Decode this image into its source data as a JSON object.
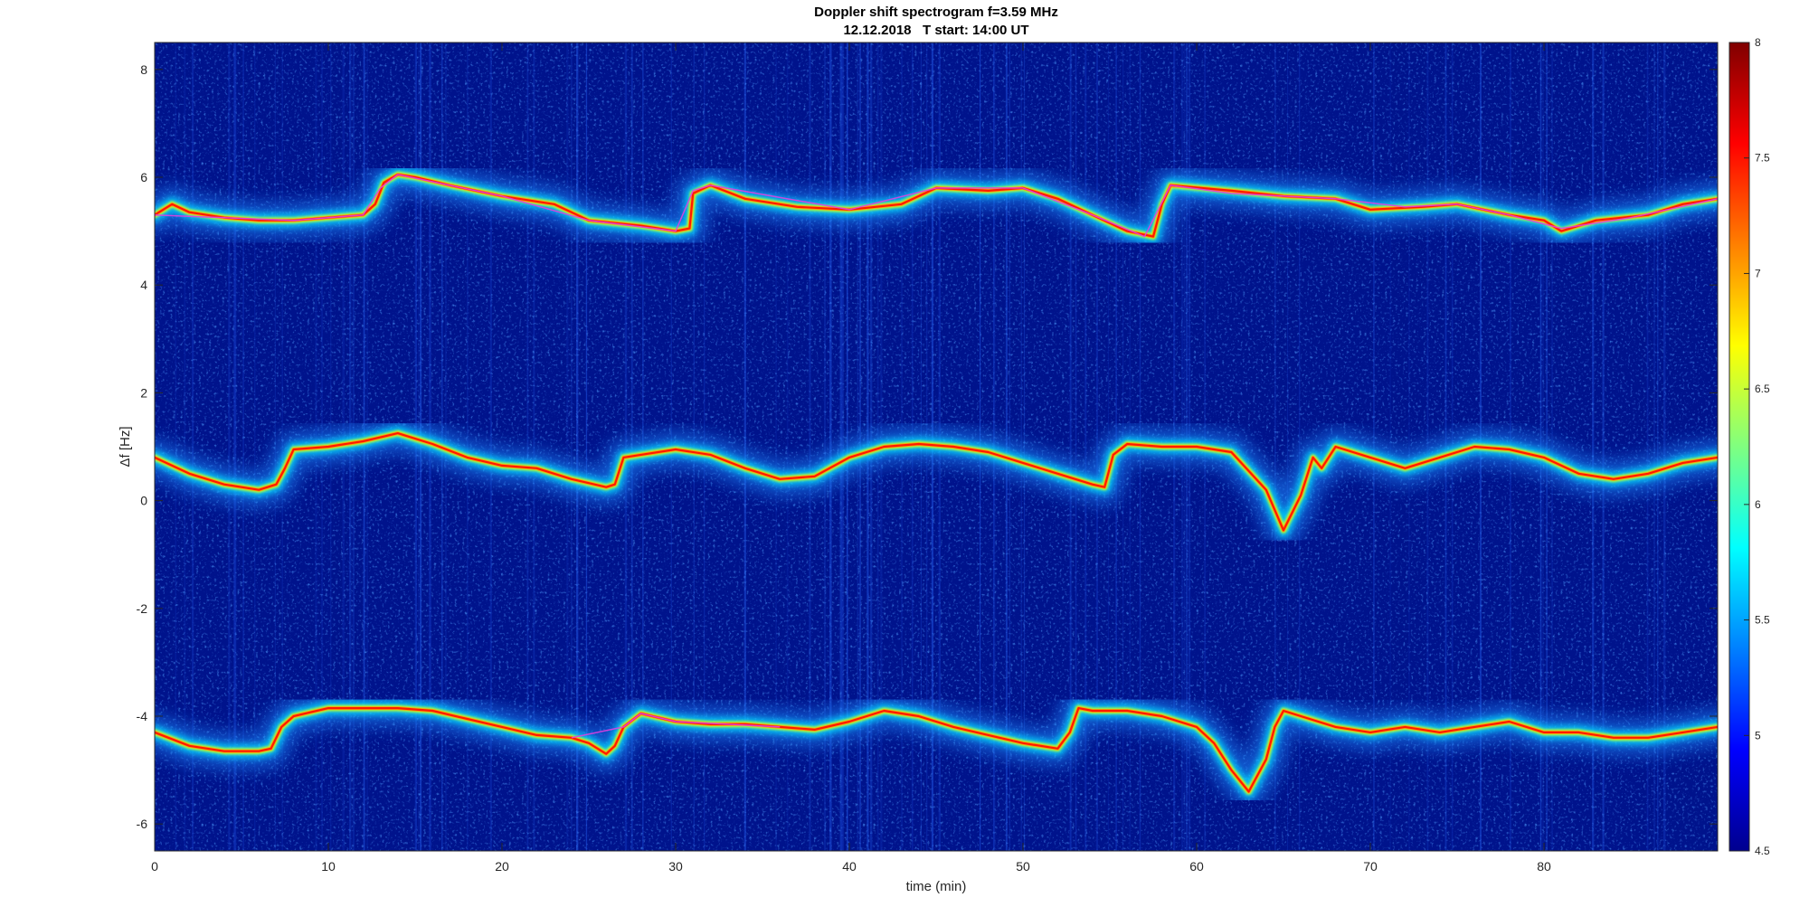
{
  "chart_data": {
    "type": "heatmap",
    "title": "Doppler shift spectrogram f=3.59 MHz",
    "subtitle": "12.12.2018   T start: 14:00 UT",
    "xlabel": "time (min)",
    "ylabel": "Δf [Hz]",
    "xlim": [
      0,
      90
    ],
    "ylim": [
      -6.5,
      8.5
    ],
    "xticks": [
      0,
      10,
      20,
      30,
      40,
      50,
      60,
      70,
      80
    ],
    "xtick_labels": [
      "0",
      "10",
      "20",
      "30",
      "40",
      "50",
      "60",
      "70",
      "80"
    ],
    "yticks": [
      -6,
      -4,
      -2,
      0,
      2,
      4,
      6,
      8
    ],
    "ytick_labels": [
      "-6",
      "-4",
      "-2",
      "0",
      "2",
      "4",
      "6",
      "8"
    ],
    "colorbar": {
      "colormap": "jet",
      "range": [
        4.5,
        8
      ],
      "ticks": [
        4.5,
        5,
        5.5,
        6,
        6.5,
        7,
        7.5,
        8
      ],
      "tick_labels": [
        "4.5",
        "5",
        "5.5",
        "6",
        "6.5",
        "7",
        "7.5",
        "8"
      ]
    },
    "background_color": "#00138c",
    "traces": [
      {
        "x": [
          0,
          1,
          2,
          4,
          6,
          8,
          10,
          12,
          12.7,
          13.2,
          14,
          15,
          17,
          20,
          23,
          25,
          28,
          30,
          30.8,
          31,
          32,
          34,
          37,
          40,
          43,
          45,
          48,
          50,
          52,
          54,
          56,
          57.5,
          58,
          58.5,
          62,
          65,
          68,
          70,
          73,
          75,
          78,
          80,
          81,
          83,
          86,
          88,
          90
        ],
        "y": [
          5.3,
          5.5,
          5.35,
          5.25,
          5.2,
          5.2,
          5.25,
          5.3,
          5.5,
          5.9,
          6.05,
          6.0,
          5.85,
          5.65,
          5.5,
          5.2,
          5.1,
          5.0,
          5.05,
          5.7,
          5.85,
          5.6,
          5.45,
          5.4,
          5.5,
          5.8,
          5.75,
          5.8,
          5.6,
          5.3,
          5.0,
          4.9,
          5.5,
          5.85,
          5.75,
          5.65,
          5.6,
          5.4,
          5.45,
          5.5,
          5.3,
          5.2,
          5.0,
          5.2,
          5.3,
          5.5,
          5.6
        ]
      },
      {
        "x": [
          0,
          2,
          4,
          6,
          7,
          7.5,
          8,
          10,
          12,
          14,
          16,
          18,
          20,
          22,
          24,
          26,
          26.5,
          27,
          28,
          30,
          32,
          34,
          36,
          38,
          40,
          42,
          44,
          46,
          48,
          50,
          52,
          54,
          54.7,
          55.2,
          56,
          58,
          60,
          62,
          64,
          65,
          66,
          66.7,
          67.2,
          68,
          70,
          72,
          74,
          76,
          78,
          80,
          82,
          84,
          86,
          88,
          90
        ],
        "y": [
          0.8,
          0.5,
          0.3,
          0.2,
          0.3,
          0.6,
          0.95,
          1.0,
          1.1,
          1.25,
          1.05,
          0.8,
          0.65,
          0.6,
          0.4,
          0.25,
          0.3,
          0.8,
          0.85,
          0.95,
          0.85,
          0.6,
          0.4,
          0.45,
          0.8,
          1.0,
          1.05,
          1.0,
          0.9,
          0.7,
          0.5,
          0.3,
          0.25,
          0.85,
          1.05,
          1.0,
          1.0,
          0.9,
          0.2,
          -0.55,
          0.1,
          0.8,
          0.6,
          1.0,
          0.8,
          0.6,
          0.8,
          1.0,
          0.95,
          0.8,
          0.5,
          0.4,
          0.5,
          0.7,
          0.8
        ]
      },
      {
        "x": [
          0,
          2,
          4,
          6,
          6.7,
          7.3,
          8,
          10,
          12,
          14,
          16,
          18,
          20,
          22,
          24,
          25,
          26,
          26.5,
          27,
          28,
          30,
          32,
          34,
          36,
          38,
          40,
          42,
          44,
          46,
          48,
          50,
          52,
          52.7,
          53.2,
          54,
          56,
          58,
          60,
          61,
          62,
          63,
          64,
          64.5,
          65,
          66,
          68,
          70,
          72,
          74,
          76,
          78,
          80,
          82,
          84,
          86,
          88,
          90
        ],
        "y": [
          -4.3,
          -4.55,
          -4.65,
          -4.65,
          -4.6,
          -4.2,
          -4.0,
          -3.85,
          -3.85,
          -3.85,
          -3.9,
          -4.05,
          -4.2,
          -4.35,
          -4.4,
          -4.5,
          -4.7,
          -4.55,
          -4.2,
          -3.95,
          -4.1,
          -4.15,
          -4.15,
          -4.2,
          -4.25,
          -4.1,
          -3.9,
          -4.0,
          -4.2,
          -4.35,
          -4.5,
          -4.6,
          -4.3,
          -3.85,
          -3.9,
          -3.9,
          -4.0,
          -4.2,
          -4.5,
          -5.0,
          -5.4,
          -4.8,
          -4.2,
          -3.9,
          -4.0,
          -4.2,
          -4.3,
          -4.2,
          -4.3,
          -4.2,
          -4.1,
          -4.3,
          -4.3,
          -4.4,
          -4.4,
          -4.3,
          -4.2
        ]
      }
    ],
    "overlay_curves": [
      {
        "color": "#e040e0",
        "x": [
          0,
          4,
          8,
          12,
          13,
          14,
          20,
          25,
          30,
          31,
          32,
          40,
          45,
          50,
          54,
          57,
          58.5,
          62,
          68,
          72,
          75,
          78,
          81,
          85,
          90
        ],
        "y": [
          5.3,
          5.25,
          5.2,
          5.3,
          5.8,
          6.05,
          5.65,
          5.2,
          5.0,
          5.75,
          5.85,
          5.4,
          5.8,
          5.8,
          5.3,
          4.9,
          5.85,
          5.7,
          5.6,
          5.45,
          5.5,
          5.3,
          5.05,
          5.25,
          5.6
        ]
      },
      {
        "color": "#e040e0",
        "x": [
          24,
          27,
          28,
          30,
          33,
          36
        ],
        "y": [
          -4.4,
          -4.2,
          -3.95,
          -4.1,
          -4.15,
          -4.2
        ]
      }
    ]
  }
}
